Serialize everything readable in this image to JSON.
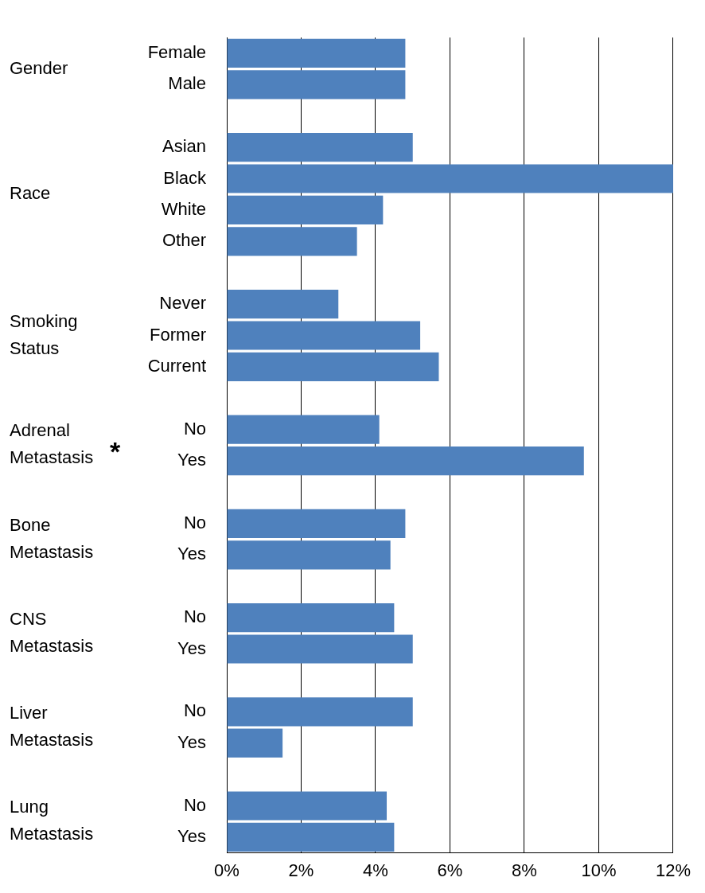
{
  "chart_data": {
    "type": "bar",
    "orientation": "horizontal",
    "categories": [
      "Female",
      "Male",
      null,
      "Asian",
      "Black",
      "White",
      "Other",
      null,
      "Never",
      "Former",
      "Current",
      null,
      "No",
      "Yes",
      null,
      "No",
      "Yes",
      null,
      "No",
      "Yes",
      null,
      "No",
      "Yes",
      null,
      "No",
      "Yes"
    ],
    "values": [
      4.8,
      4.8,
      null,
      5.0,
      12.0,
      4.2,
      3.5,
      null,
      3.0,
      5.2,
      5.7,
      null,
      4.1,
      9.6,
      null,
      4.8,
      4.4,
      null,
      4.5,
      5.0,
      null,
      5.0,
      1.5,
      null,
      4.3,
      4.5
    ],
    "color": "#4f81bd",
    "xlim": [
      0,
      12
    ],
    "xticks": [
      {
        "value": 0,
        "label": "0%"
      },
      {
        "value": 2,
        "label": "2%"
      },
      {
        "value": 4,
        "label": "4%"
      },
      {
        "value": 6,
        "label": "6%"
      },
      {
        "value": 8,
        "label": "8%"
      },
      {
        "value": 10,
        "label": "10%"
      },
      {
        "value": 12,
        "label": "12%"
      }
    ],
    "grid": "x",
    "legend": false,
    "annotations": [
      "Gender",
      "Race",
      "Smoking Status",
      "Adrenal Metastasis",
      "*",
      "Bone Metastasis",
      "CNS Metastasis",
      "Liver Metastasis",
      "Lung Metastasis"
    ]
  }
}
